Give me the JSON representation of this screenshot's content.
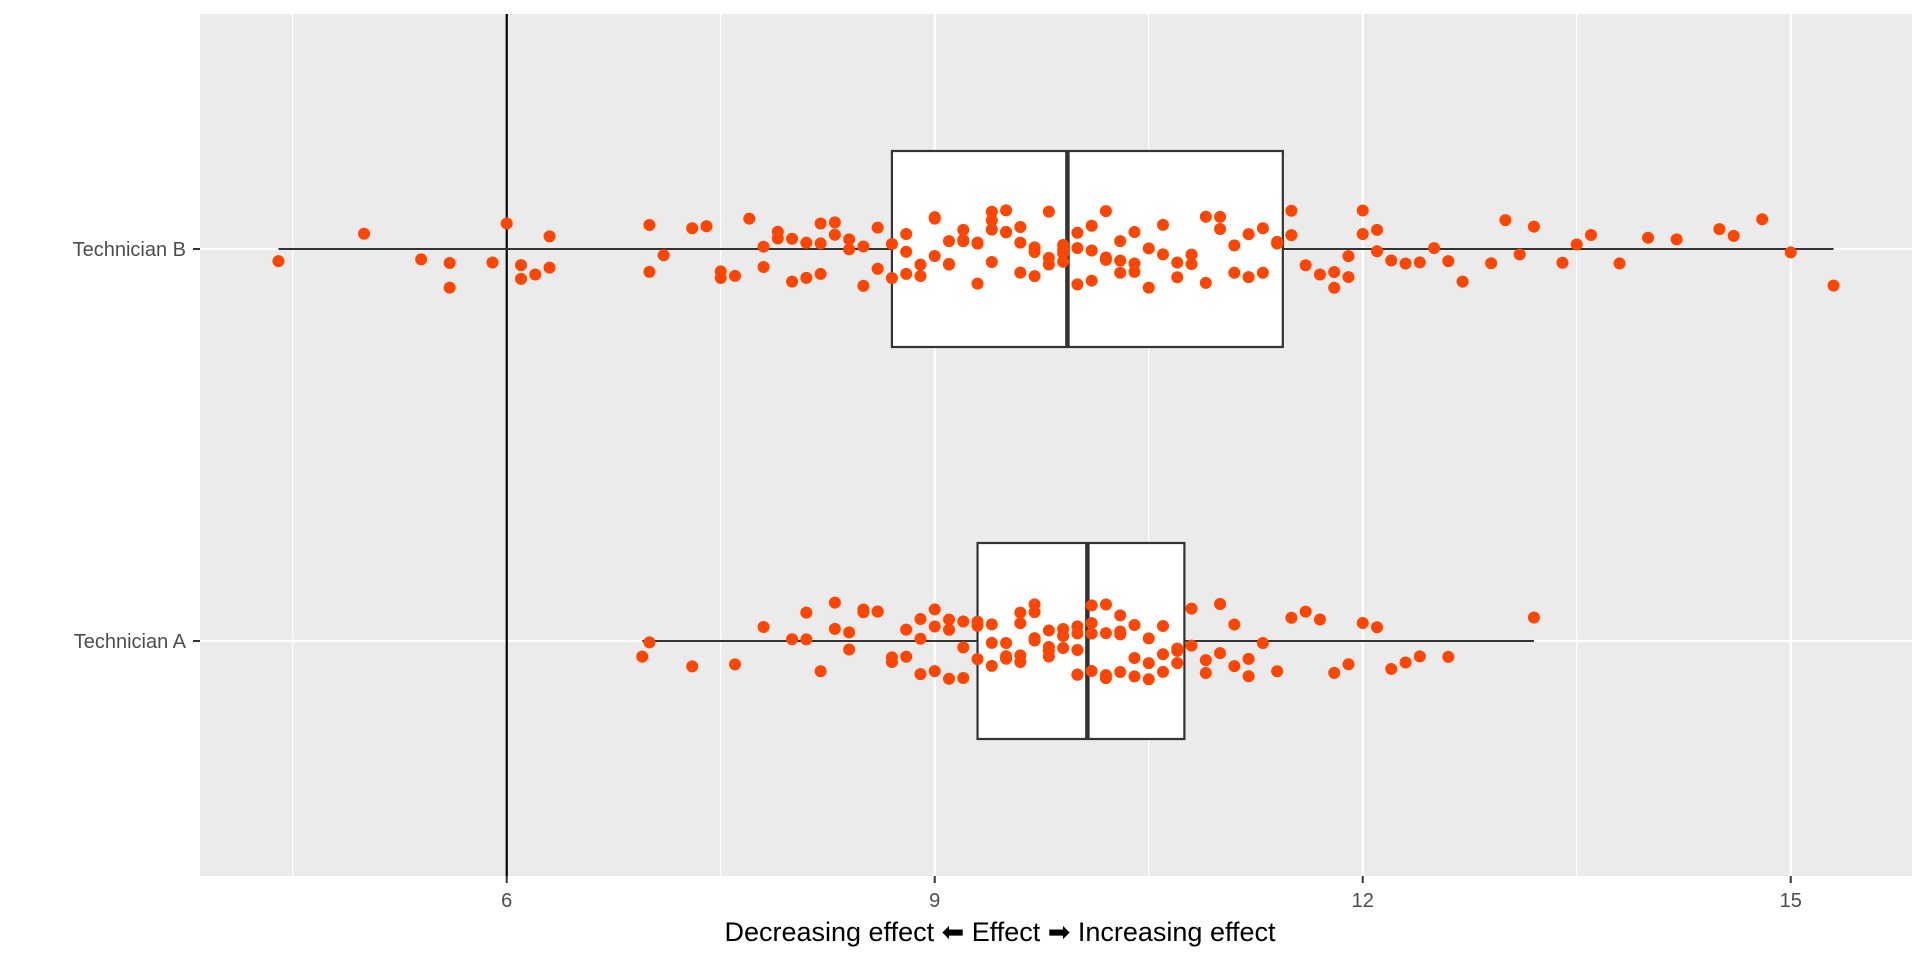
{
  "chart_data": {
    "type": "boxplot",
    "orientation": "horizontal",
    "xlabel": "Decreasing effect ⬅    Effect    ➡ Increasing effect",
    "xlim": [
      3.85,
      15.85
    ],
    "xticks": [
      6,
      9,
      12,
      15
    ],
    "xtick_labels": [
      "6",
      "9",
      "12",
      "15"
    ],
    "categories": [
      "Technician B",
      "Technician A"
    ],
    "reference_line_x": 6,
    "grid": true,
    "colors": {
      "panel_background": "#ebebeb",
      "grid": "#ffffff",
      "points": "#ff4500",
      "box_fill": "#ffffff",
      "box_outline": "#333333",
      "reference_line": "#000000"
    },
    "boxes": [
      {
        "category": "Technician B",
        "whisker_low": 4.4,
        "q1": 8.7,
        "median": 9.93,
        "q3": 11.44,
        "whisker_high": 15.3,
        "points": [
          4.4,
          5.0,
          5.4,
          5.6,
          5.6,
          5.9,
          6.0,
          6.1,
          6.1,
          6.2,
          6.3,
          6.3,
          7.0,
          7.0,
          7.1,
          7.3,
          7.4,
          7.5,
          7.5,
          7.6,
          7.7,
          7.8,
          7.8,
          7.9,
          7.9,
          8.0,
          8.0,
          8.1,
          8.1,
          8.2,
          8.2,
          8.2,
          8.3,
          8.3,
          8.4,
          8.4,
          8.5,
          8.5,
          8.6,
          8.6,
          8.7,
          8.7,
          8.8,
          8.8,
          8.8,
          8.9,
          8.9,
          9.0,
          9.0,
          9.0,
          9.1,
          9.1,
          9.1,
          9.2,
          9.2,
          9.2,
          9.3,
          9.3,
          9.3,
          9.4,
          9.4,
          9.4,
          9.4,
          9.5,
          9.5,
          9.5,
          9.6,
          9.6,
          9.6,
          9.7,
          9.7,
          9.7,
          9.8,
          9.8,
          9.8,
          9.9,
          9.9,
          9.9,
          9.9,
          10.0,
          10.0,
          10.0,
          10.1,
          10.1,
          10.1,
          10.2,
          10.2,
          10.2,
          10.3,
          10.3,
          10.3,
          10.4,
          10.4,
          10.4,
          10.5,
          10.5,
          10.6,
          10.6,
          10.7,
          10.7,
          10.8,
          10.8,
          10.9,
          10.9,
          11.0,
          11.0,
          11.1,
          11.1,
          11.2,
          11.2,
          11.3,
          11.3,
          11.4,
          11.4,
          11.5,
          11.5,
          11.6,
          11.7,
          11.8,
          11.8,
          11.9,
          11.9,
          12.0,
          12.0,
          12.1,
          12.1,
          12.2,
          12.3,
          12.4,
          12.5,
          12.6,
          12.7,
          12.9,
          13.0,
          13.1,
          13.2,
          13.4,
          13.5,
          13.6,
          13.8,
          14.0,
          14.2,
          14.5,
          14.6,
          14.8,
          15.0,
          15.3
        ]
      },
      {
        "category": "Technician A",
        "whisker_low": 6.95,
        "q1": 9.3,
        "median": 10.07,
        "q3": 10.75,
        "whisker_high": 13.2,
        "points": [
          6.95,
          7.0,
          7.3,
          7.6,
          7.8,
          8.0,
          8.1,
          8.1,
          8.2,
          8.3,
          8.3,
          8.4,
          8.4,
          8.5,
          8.5,
          8.6,
          8.6,
          8.7,
          8.7,
          8.8,
          8.8,
          8.9,
          8.9,
          8.9,
          9.0,
          9.0,
          9.0,
          9.1,
          9.1,
          9.1,
          9.2,
          9.2,
          9.2,
          9.3,
          9.3,
          9.3,
          9.4,
          9.4,
          9.4,
          9.5,
          9.5,
          9.5,
          9.6,
          9.6,
          9.6,
          9.6,
          9.7,
          9.7,
          9.7,
          9.7,
          9.8,
          9.8,
          9.8,
          9.8,
          9.9,
          9.9,
          9.9,
          9.9,
          10.0,
          10.0,
          10.0,
          10.0,
          10.0,
          10.1,
          10.1,
          10.1,
          10.1,
          10.2,
          10.2,
          10.2,
          10.2,
          10.3,
          10.3,
          10.3,
          10.3,
          10.4,
          10.4,
          10.4,
          10.5,
          10.5,
          10.5,
          10.6,
          10.6,
          10.6,
          10.7,
          10.7,
          10.7,
          10.8,
          10.8,
          10.9,
          10.9,
          11.0,
          11.0,
          11.1,
          11.1,
          11.2,
          11.2,
          11.3,
          11.4,
          11.5,
          11.6,
          11.7,
          11.8,
          11.9,
          12.0,
          12.1,
          12.2,
          12.3,
          12.4,
          12.6,
          13.2
        ]
      }
    ]
  }
}
